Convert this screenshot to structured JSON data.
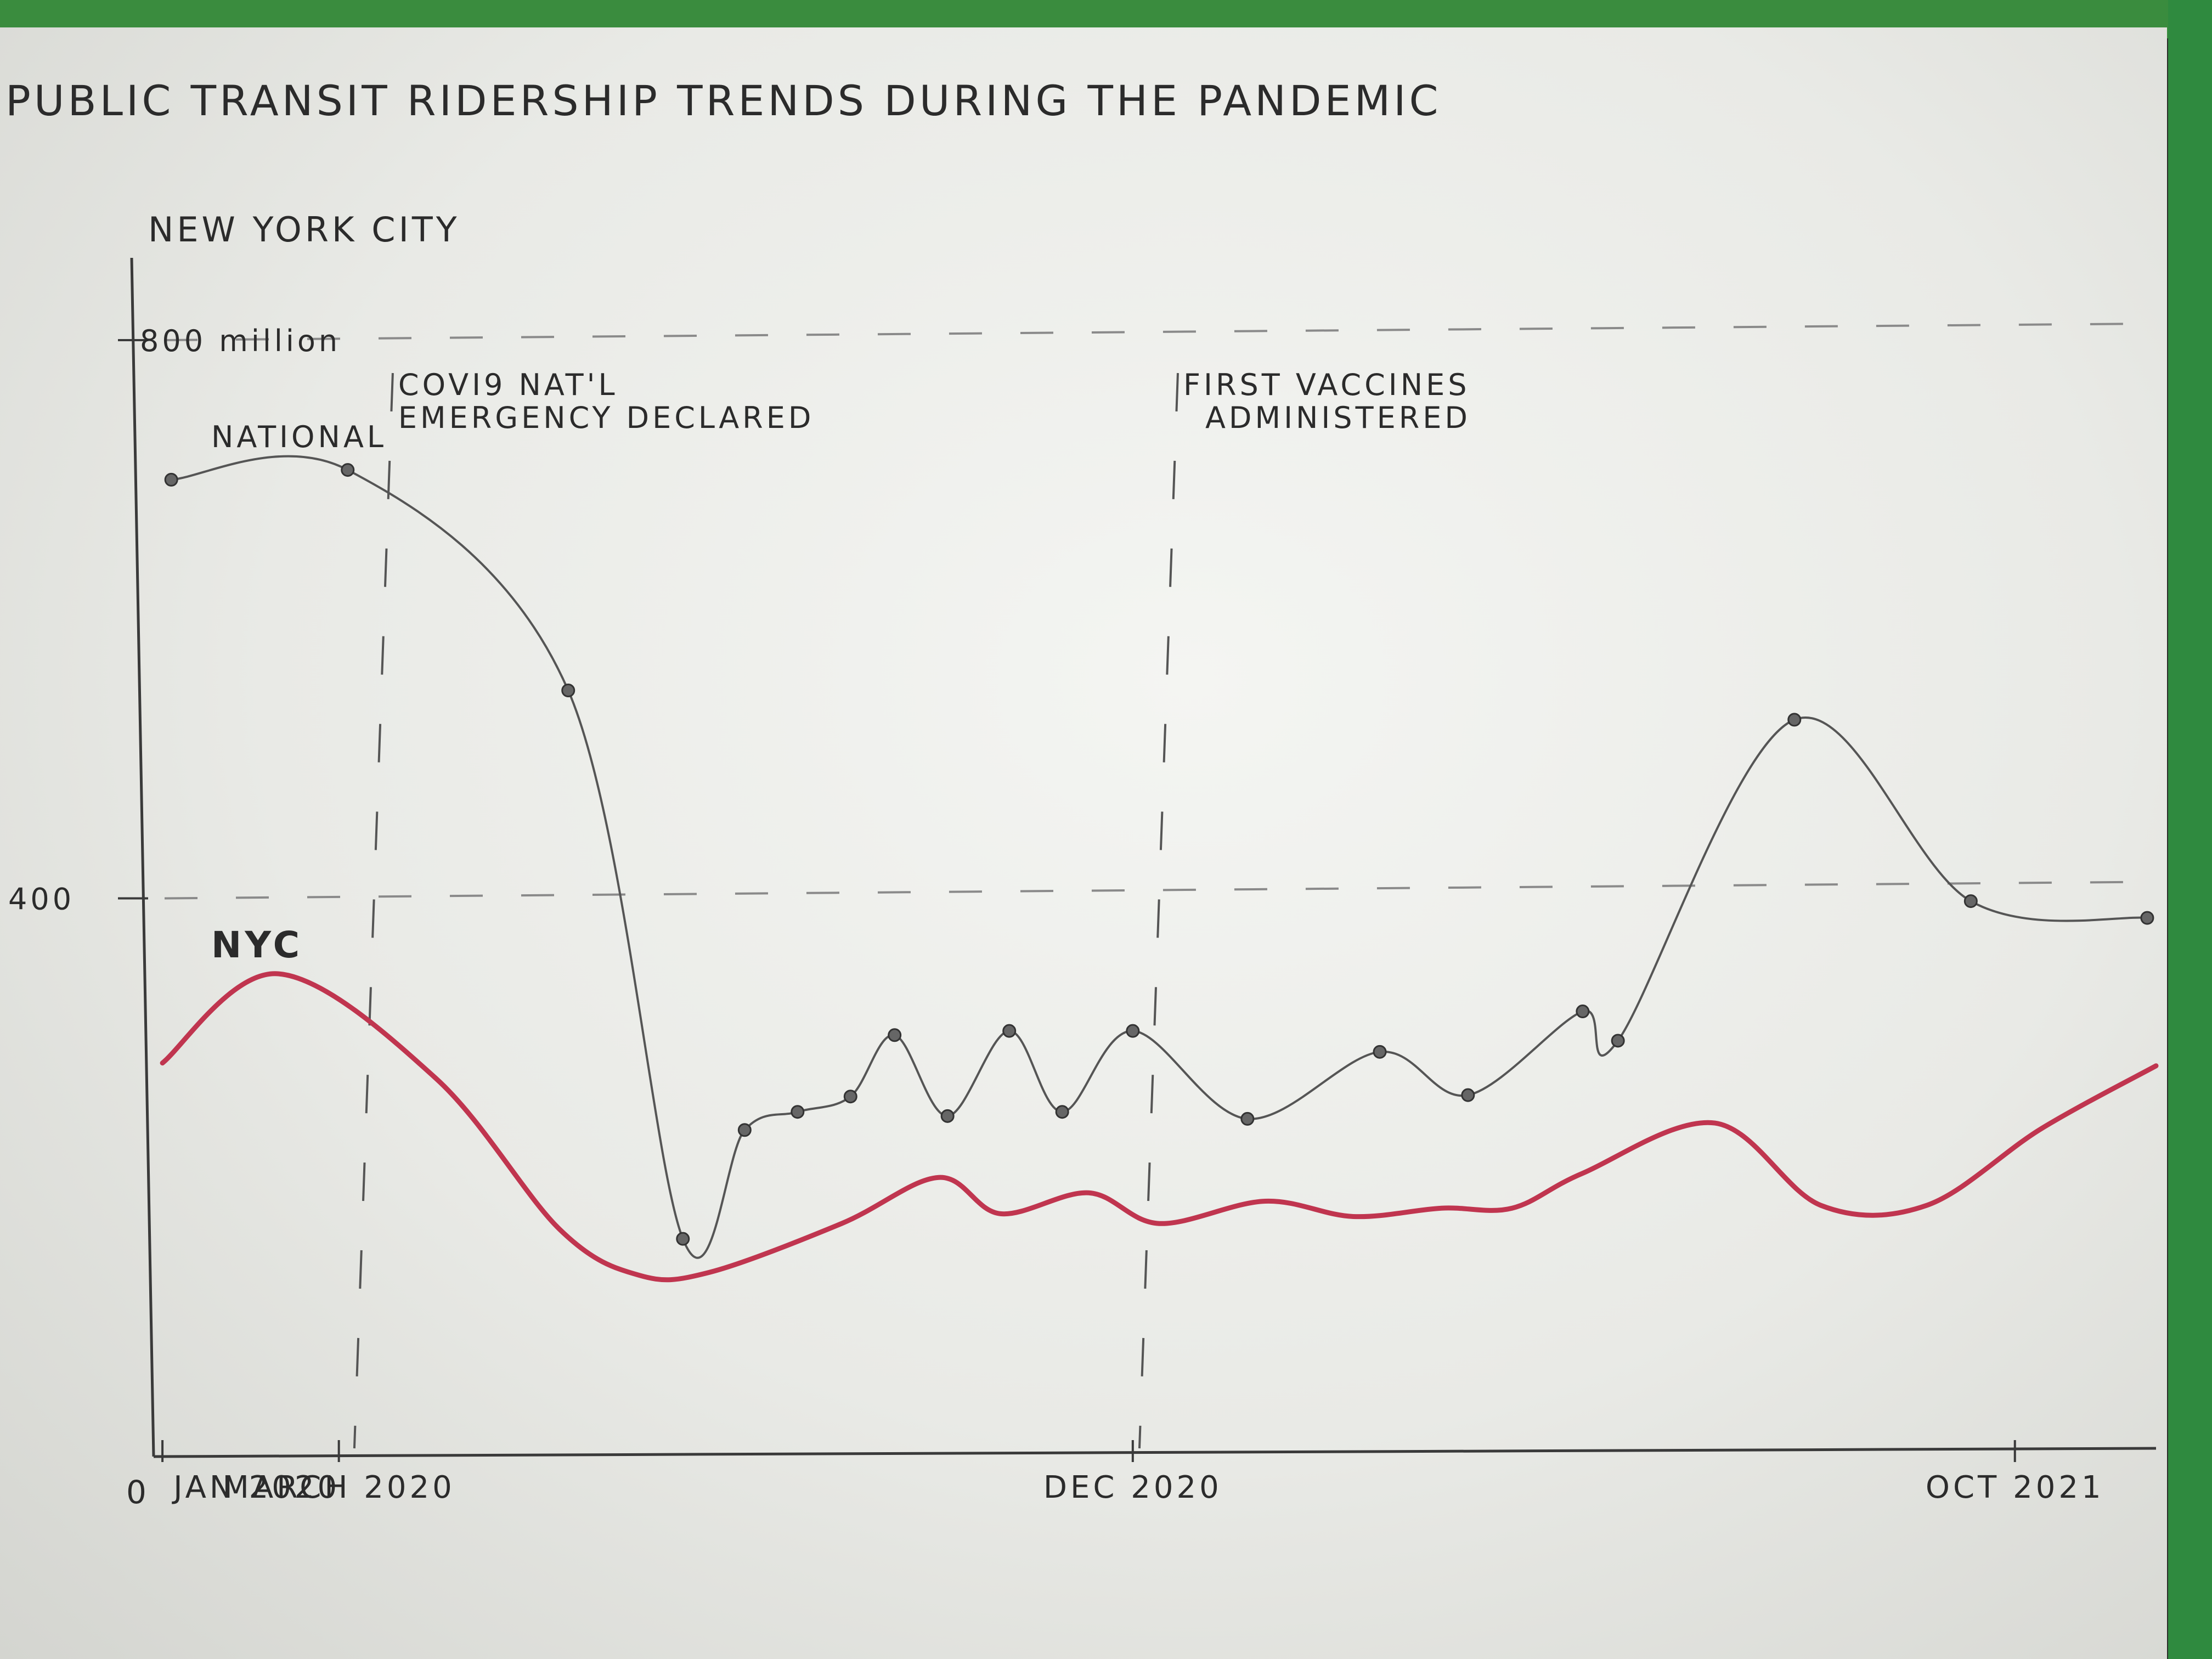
{
  "chart_data": {
    "type": "line",
    "title": "PUBLIC TRANSIT RIDERSHIP TRENDS DURING THE PANDEMIC",
    "subtitle": "NEW YORK CITY",
    "x_ticks": [
      {
        "label": "JAN 2020",
        "month": 0
      },
      {
        "label": "MARCH 2020",
        "month": 2
      },
      {
        "label": "DEC 2020",
        "month": 11
      },
      {
        "label": "OCT 2021",
        "month": 21
      }
    ],
    "y_ticks": [
      {
        "label": "0",
        "value": 0
      },
      {
        "label": "400",
        "value": 400
      },
      {
        "label": "800 million",
        "value": 800
      }
    ],
    "xlim": [
      -0.1,
      22.6
    ],
    "ylim": [
      0,
      800
    ],
    "annotations": [
      {
        "lines": [
          "COVI9 NAT'L",
          "EMERGENCY DECLARED"
        ],
        "month": 2.3
      },
      {
        "lines": [
          "FIRST VACCINES",
          "ADMINISTERED"
        ],
        "month": 11.2
      }
    ],
    "series": [
      {
        "name": "NATIONAL",
        "color": "#555555",
        "points": [
          [
            0.1,
            700
          ],
          [
            2.1,
            707
          ],
          [
            4.6,
            549
          ],
          [
            5.9,
            156
          ],
          [
            6.6,
            234
          ],
          [
            7.2,
            247
          ],
          [
            7.8,
            258
          ],
          [
            8.3,
            302
          ],
          [
            8.9,
            244
          ],
          [
            9.6,
            305
          ],
          [
            10.2,
            247
          ],
          [
            11.0,
            305
          ],
          [
            12.3,
            242
          ],
          [
            13.8,
            290
          ],
          [
            14.8,
            259
          ],
          [
            16.1,
            319
          ],
          [
            16.5,
            298
          ],
          [
            18.5,
            528
          ],
          [
            20.5,
            398
          ],
          [
            22.5,
            386
          ]
        ]
      },
      {
        "name": "NYC",
        "color": "#c0354f",
        "points": [
          [
            0.0,
            282
          ],
          [
            1.3,
            346
          ],
          [
            3.1,
            271
          ],
          [
            4.5,
            163
          ],
          [
            5.4,
            130
          ],
          [
            6.2,
            132
          ],
          [
            7.7,
            167
          ],
          [
            8.8,
            200
          ],
          [
            9.5,
            174
          ],
          [
            10.5,
            189
          ],
          [
            11.3,
            167
          ],
          [
            12.5,
            183
          ],
          [
            13.5,
            172
          ],
          [
            14.5,
            178
          ],
          [
            15.3,
            178
          ],
          [
            16.1,
            203
          ],
          [
            17.6,
            239
          ],
          [
            18.8,
            180
          ],
          [
            20.0,
            180
          ],
          [
            21.3,
            235
          ],
          [
            22.6,
            280
          ]
        ]
      }
    ]
  }
}
